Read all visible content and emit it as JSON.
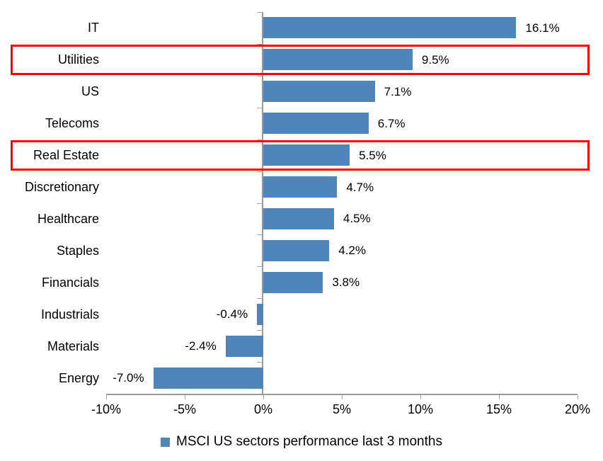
{
  "chart_data": {
    "type": "bar",
    "orientation": "horizontal",
    "title": "",
    "legend": "MSCI US sectors performance last 3 months",
    "categories": [
      "IT",
      "Utilities",
      "US",
      "Telecoms",
      "Real Estate",
      "Discretionary",
      "Healthcare",
      "Staples",
      "Financials",
      "Industrials",
      "Materials",
      "Energy"
    ],
    "values": [
      16.1,
      9.5,
      7.1,
      6.7,
      5.5,
      4.7,
      4.5,
      4.2,
      3.8,
      -0.4,
      -2.4,
      -7.0
    ],
    "value_labels": [
      "16.1%",
      "9.5%",
      "7.1%",
      "6.7%",
      "5.5%",
      "4.7%",
      "4.5%",
      "4.2%",
      "3.8%",
      "-0.4%",
      "-2.4%",
      "-7.0%"
    ],
    "highlighted_categories": [
      "Utilities",
      "Real Estate"
    ],
    "x_tick_labels": [
      "-10%",
      "-5%",
      "0%",
      "5%",
      "10%",
      "15%",
      "20%"
    ],
    "x_tick_values": [
      -10,
      -5,
      0,
      5,
      10,
      15,
      20
    ],
    "xlim": [
      -10,
      20
    ],
    "grid": false,
    "legend_position": "bottom-center",
    "colors": {
      "bar": "#4e86bc",
      "highlight_box": "#ff0000",
      "axis": "#9a9a9a",
      "ticks": "#a6a6a6",
      "text": "#000000"
    }
  }
}
